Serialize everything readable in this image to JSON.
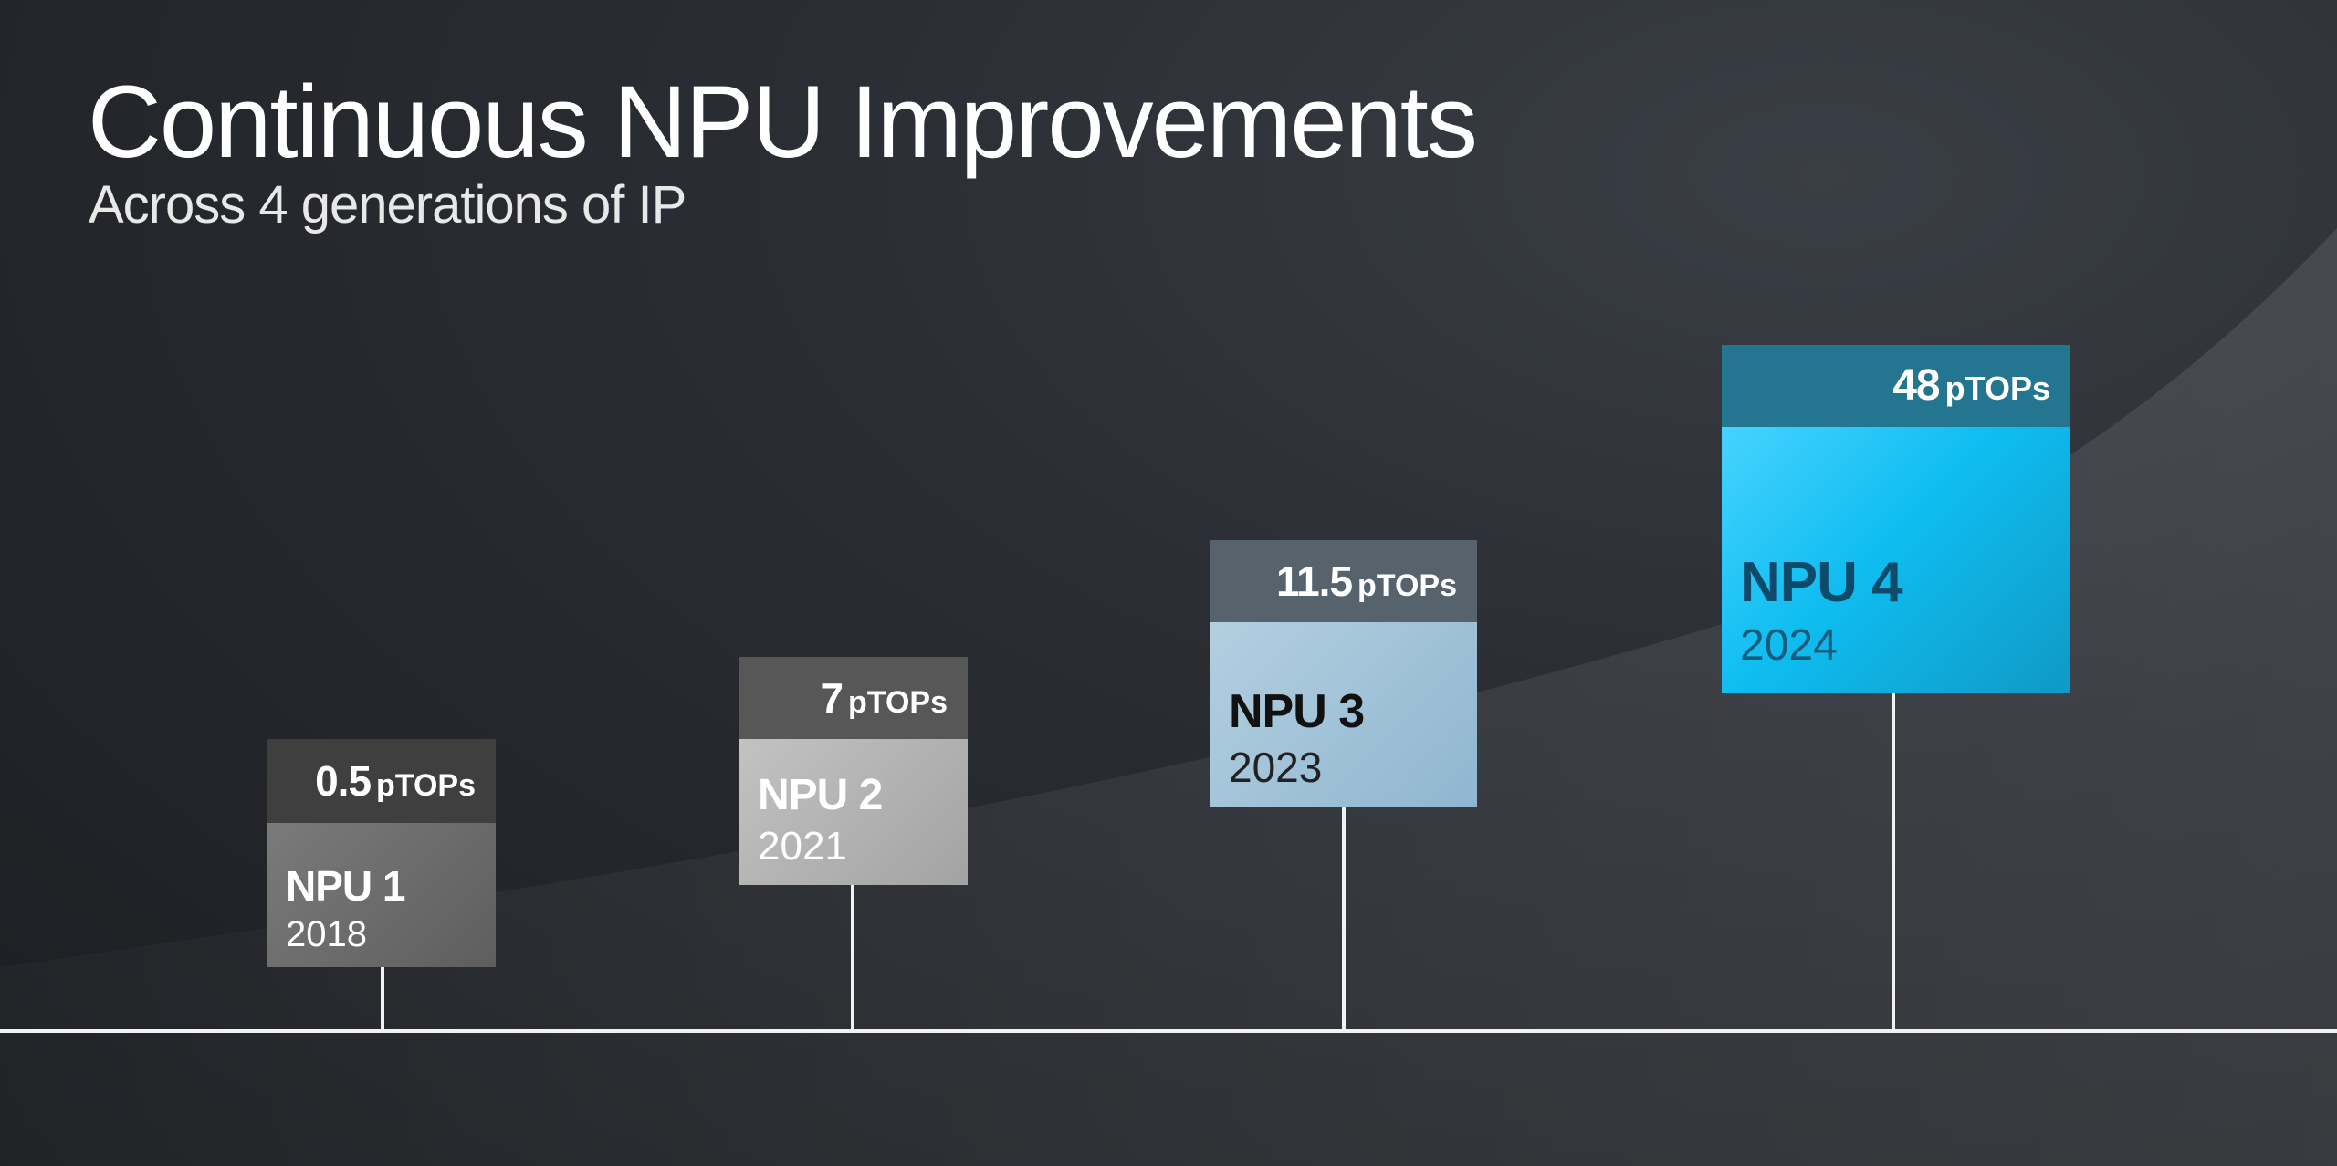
{
  "slide": {
    "title": "Continuous NPU Improvements",
    "subtitle": "Across 4 generations of IP"
  },
  "unit": "pTOPs",
  "generations": [
    {
      "name": "NPU 1",
      "year": "2018",
      "performance": "0.5",
      "unit": "pTOPs",
      "header_color": "#3f3f3f",
      "card_color": "#6a6a6a",
      "name_color": "#ffffff",
      "year_color": "#ffffff"
    },
    {
      "name": "NPU 2",
      "year": "2021",
      "performance": "7",
      "unit": "pTOPs",
      "header_color": "#575757",
      "card_color": "#b3b3b3",
      "name_color": "#ffffff",
      "year_color": "#ffffff"
    },
    {
      "name": "NPU 3",
      "year": "2023",
      "performance": "11.5",
      "unit": "pTOPs",
      "header_color": "#56636d",
      "card_color": "#9dbfd5",
      "name_color": "#111111",
      "year_color": "#222222"
    },
    {
      "name": "NPU 4",
      "year": "2024",
      "performance": "48",
      "unit": "pTOPs",
      "header_color": "#237590",
      "card_color": "#1fb9e8",
      "name_color": "#0e4a6a",
      "year_color": "#1a5a7a"
    }
  ]
}
